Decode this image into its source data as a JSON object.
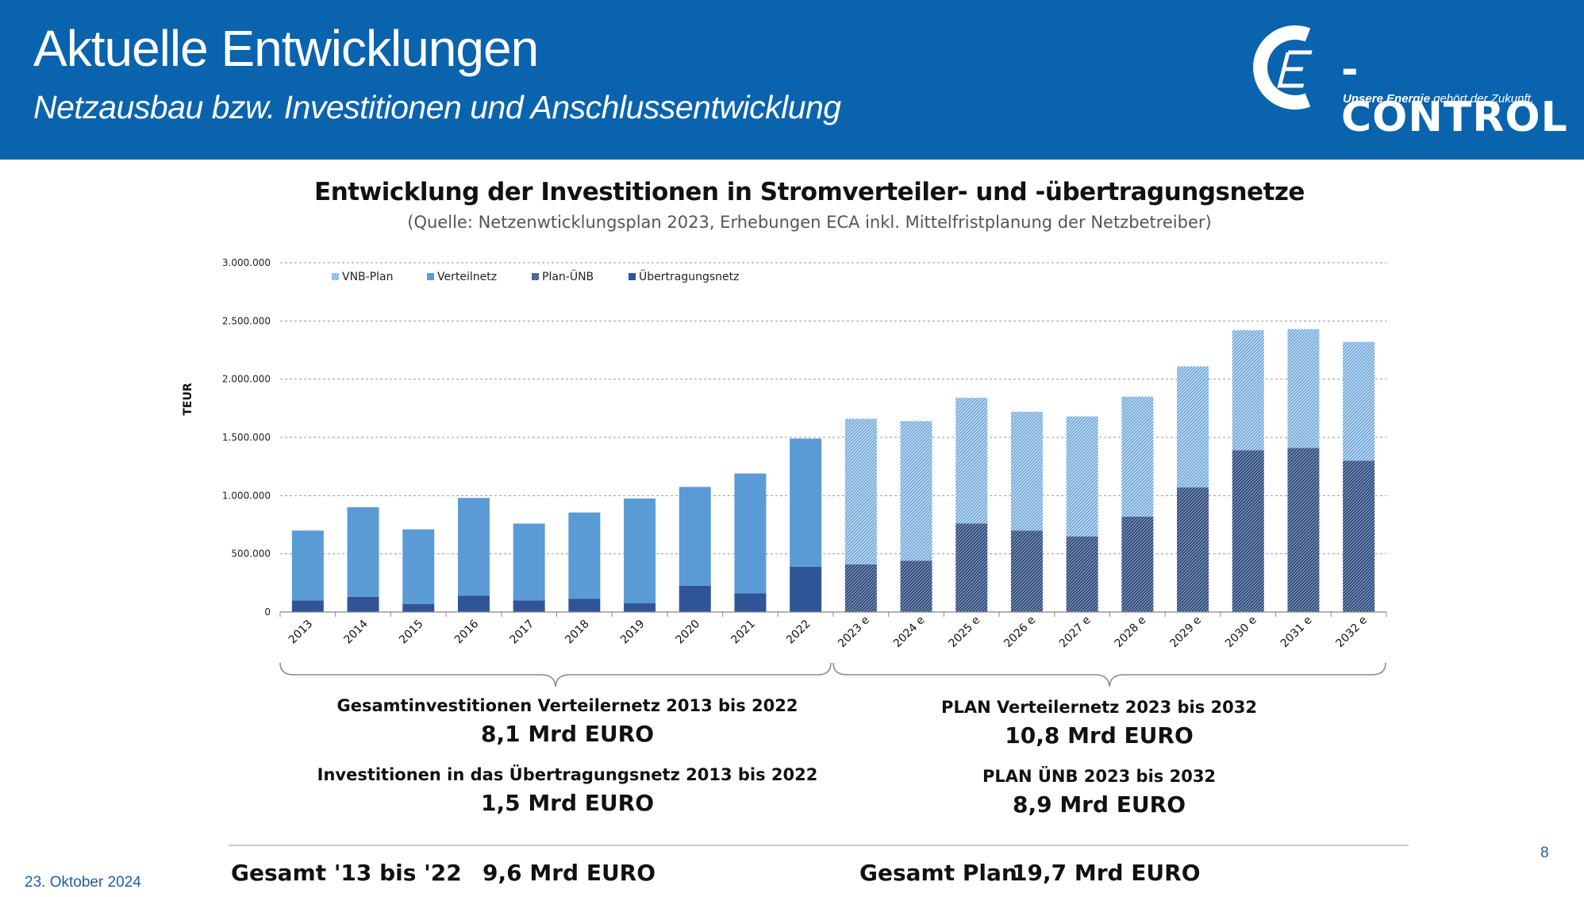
{
  "header": {
    "title": "Aktuelle Entwicklungen",
    "subtitle": "Netzausbau bzw. Investitionen und Anschlussentwicklung",
    "logo_text": "-CONTROL",
    "logo_tag_bold": "Unsere Energie",
    "logo_tag_rest": " gehört der Zukunft."
  },
  "colors": {
    "header_bg": "#0a63ad",
    "verteilnetz": "#5b9bd5",
    "uebertragungsnetz": "#2f5597",
    "vnb_plan": "#9dc3e6",
    "plan_uenb": "#2f5597"
  },
  "chart_data": {
    "type": "bar",
    "stacked": true,
    "title": "Entwicklung der Investitionen in Stromverteiler- und -übertragungsnetze",
    "subtitle": "(Quelle: Netzenwticklungsplan 2023, Erhebungen ECA inkl. Mittelfristplanung der Netzbetreiber)",
    "ylabel": "TEUR",
    "ylim": [
      0,
      3000000
    ],
    "yticks": [
      0,
      500000,
      1000000,
      1500000,
      2000000,
      2500000,
      3000000
    ],
    "ytick_labels": [
      "0",
      "500.000",
      "1.000.000",
      "1.500.000",
      "2.000.000",
      "2.500.000",
      "3.000.000"
    ],
    "grid": "horizontal dashed",
    "legend_position": "top-left",
    "categories": [
      "2013",
      "2014",
      "2015",
      "2016",
      "2017",
      "2018",
      "2019",
      "2020",
      "2021",
      "2022",
      "2023 e",
      "2024 e",
      "2025 e",
      "2026 e",
      "2027 e",
      "2028 e",
      "2029 e",
      "2030 e",
      "2031 e",
      "2032 e"
    ],
    "series": [
      {
        "name": "VNB-Plan",
        "pattern": "hatched-light",
        "values": [
          0,
          0,
          0,
          0,
          0,
          0,
          0,
          0,
          0,
          0,
          1250000,
          1200000,
          1080000,
          1020000,
          1030000,
          1030000,
          1040000,
          1030000,
          1020000,
          1020000
        ]
      },
      {
        "name": "Verteilnetz",
        "pattern": "solid-light",
        "values": [
          600000,
          770000,
          640000,
          840000,
          660000,
          740000,
          900000,
          850000,
          1030000,
          1100000,
          0,
          0,
          0,
          0,
          0,
          0,
          0,
          0,
          0,
          0
        ]
      },
      {
        "name": "Plan-ÜNB",
        "pattern": "hatched-dark",
        "values": [
          0,
          0,
          0,
          0,
          0,
          0,
          0,
          0,
          0,
          0,
          410000,
          440000,
          760000,
          700000,
          650000,
          820000,
          1070000,
          1390000,
          1410000,
          1300000
        ]
      },
      {
        "name": "Übertragungsnetz",
        "pattern": "solid-dark",
        "values": [
          100000,
          130000,
          70000,
          140000,
          100000,
          115000,
          75000,
          225000,
          160000,
          390000,
          0,
          0,
          0,
          0,
          0,
          0,
          0,
          0,
          0,
          0
        ]
      }
    ]
  },
  "summary": {
    "left_label_1": "Gesamtinvestitionen Verteilernetz 2013 bis 2022",
    "left_value_1": "8,1 Mrd EURO",
    "left_label_2": "Investitionen in das Übertragungsnetz 2013 bis 2022",
    "left_value_2": "1,5 Mrd EURO",
    "right_label_1": "PLAN Verteilernetz 2023 bis 2032",
    "right_value_1": "10,8 Mrd EURO",
    "right_label_2": "PLAN ÜNB 2023 bis 2032",
    "right_value_2": "8,9 Mrd EURO",
    "total_left_label": "Gesamt '13 bis '22",
    "total_left_value": "9,6 Mrd EURO",
    "total_right_label": "Gesamt Plan",
    "total_right_value": "19,7 Mrd EURO"
  },
  "footer": {
    "date": "23. Oktober 2024",
    "page": "8"
  }
}
